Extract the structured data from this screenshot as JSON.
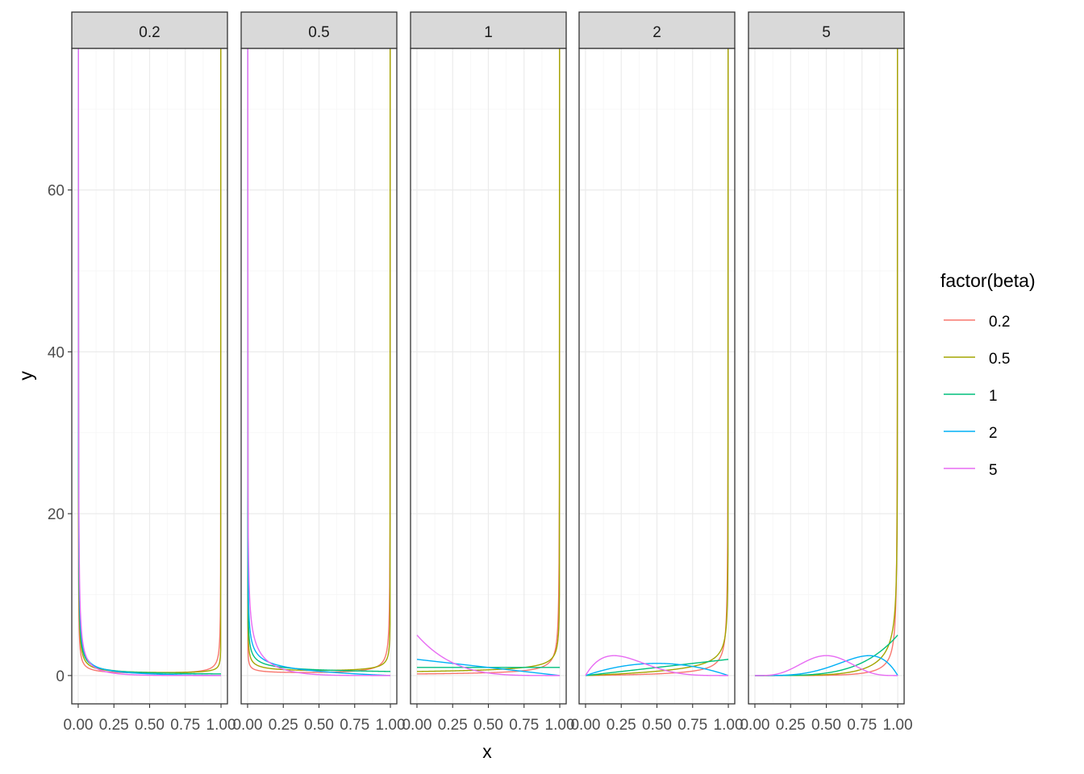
{
  "chart_data": {
    "type": "line",
    "facet_by": "alpha",
    "facets": [
      "0.2",
      "0.5",
      "1",
      "2",
      "5"
    ],
    "xlabel": "x",
    "ylabel": "y",
    "xlim": [
      0,
      1
    ],
    "ylim": [
      -3.5,
      77.5
    ],
    "x_ticks": [
      0,
      0.25,
      0.5,
      0.75,
      1
    ],
    "x_tick_labels": [
      "0.00",
      "0.25",
      "0.50",
      "0.75",
      "1.00"
    ],
    "y_ticks": [
      0,
      20,
      40,
      60
    ],
    "y_tick_labels": [
      "0",
      "20",
      "40",
      "60"
    ],
    "grid": true,
    "legend": {
      "title": "factor(beta)",
      "placement": "right",
      "entries": [
        {
          "label": "0.2",
          "color": "#F8766D"
        },
        {
          "label": "0.5",
          "color": "#A3A500"
        },
        {
          "label": "1",
          "color": "#00BF7D"
        },
        {
          "label": "2",
          "color": "#00B0F6"
        },
        {
          "label": "5",
          "color": "#E76BF3"
        }
      ]
    },
    "series_description": "Beta density curves y = dbeta(x, alpha, beta); facet = alpha, color = beta",
    "series": [
      {
        "name": "0.2",
        "beta": 0.2,
        "color": "#F8766D"
      },
      {
        "name": "0.5",
        "beta": 0.5,
        "color": "#A3A500"
      },
      {
        "name": "1",
        "beta": 1,
        "color": "#00BF7D"
      },
      {
        "name": "2",
        "beta": 2,
        "color": "#00B0F6"
      },
      {
        "name": "5",
        "beta": 5,
        "color": "#E76BF3"
      }
    ]
  },
  "theme": {
    "panel_border": "#333333",
    "grid_major": "#ebebeb",
    "grid_minor": "#f5f5f5",
    "strip_fill": "#d9d9d9"
  }
}
